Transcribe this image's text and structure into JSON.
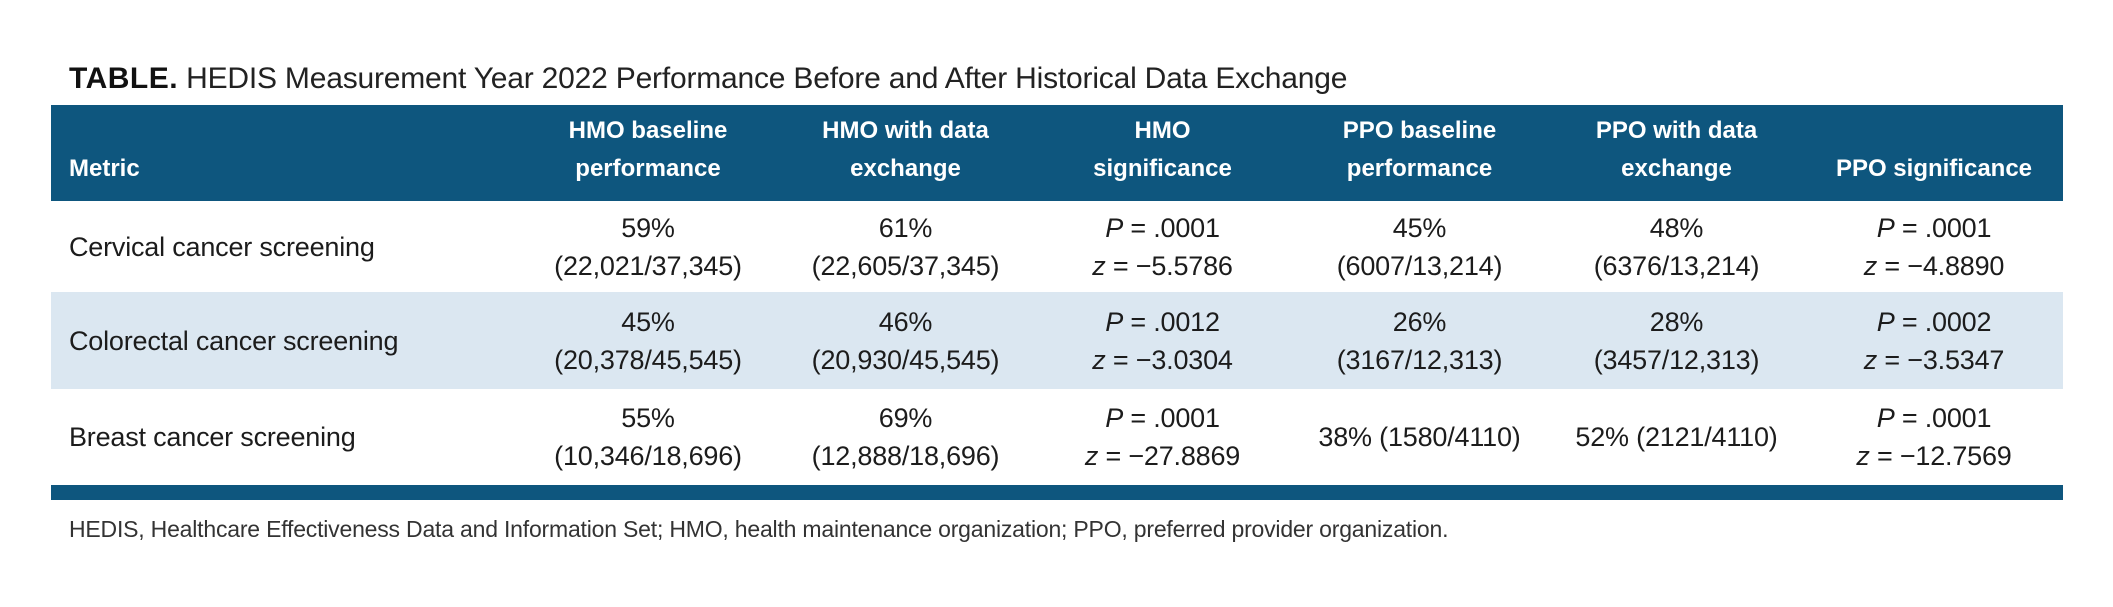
{
  "title": {
    "label": "TABLE.",
    "text": "HEDIS Measurement Year 2022 Performance Before and After Historical Data Exchange"
  },
  "colors": {
    "header_bg": "#0E567E",
    "alt_row_bg": "#DBE7F1",
    "bottom_bar": "#0E567E",
    "header_text": "#FFFFFF",
    "body_text": "#1C1C1C",
    "footnote_text": "#333333"
  },
  "table": {
    "header": [
      {
        "line1": "",
        "line2": "Metric"
      },
      {
        "line1": "HMO baseline",
        "line2": "performance"
      },
      {
        "line1": "HMO with data",
        "line2": "exchange"
      },
      {
        "line1": "HMO",
        "line2": "significance"
      },
      {
        "line1": "PPO baseline",
        "line2": "performance"
      },
      {
        "line1": "PPO with data",
        "line2": "exchange"
      },
      {
        "line1": "",
        "line2": "PPO significance"
      }
    ],
    "rows": [
      {
        "metric": "Cervical cancer screening",
        "hmo_baseline": {
          "l1": "59%",
          "l2": "(22,021/37,345)"
        },
        "hmo_exchange": {
          "l1": "61%",
          "l2": "(22,605/37,345)"
        },
        "hmo_sig": {
          "p_var": "P",
          "p_rest": " = .0001",
          "z_var": "z",
          "z_rest": " = −5.5786"
        },
        "ppo_baseline": {
          "l1": "45%",
          "l2": "(6007/13,214)"
        },
        "ppo_exchange": {
          "l1": "48%",
          "l2": "(6376/13,214)"
        },
        "ppo_sig": {
          "p_var": "P",
          "p_rest": " = .0001",
          "z_var": "z",
          "z_rest": " = −4.8890"
        }
      },
      {
        "metric": "Colorectal cancer screening",
        "hmo_baseline": {
          "l1": "45%",
          "l2": "(20,378/45,545)"
        },
        "hmo_exchange": {
          "l1": "46%",
          "l2": "(20,930/45,545)"
        },
        "hmo_sig": {
          "p_var": "P",
          "p_rest": " = .0012",
          "z_var": "z",
          "z_rest": " = −3.0304"
        },
        "ppo_baseline": {
          "l1": "26%",
          "l2": "(3167/12,313)"
        },
        "ppo_exchange": {
          "l1": "28%",
          "l2": "(3457/12,313)"
        },
        "ppo_sig": {
          "p_var": "P",
          "p_rest": " = .0002",
          "z_var": "z",
          "z_rest": " = −3.5347"
        }
      },
      {
        "metric": "Breast cancer screening",
        "hmo_baseline": {
          "l1": "55%",
          "l2": "(10,346/18,696)"
        },
        "hmo_exchange": {
          "l1": "69%",
          "l2": "(12,888/18,696)"
        },
        "hmo_sig": {
          "p_var": "P",
          "p_rest": " = .0001",
          "z_var": "z",
          "z_rest": " = −27.8869"
        },
        "ppo_baseline": {
          "l1": "38% (1580/4110)",
          "l2": ""
        },
        "ppo_exchange": {
          "l1": "52% (2121/4110)",
          "l2": ""
        },
        "ppo_sig": {
          "p_var": "P",
          "p_rest": " = .0001",
          "z_var": "z",
          "z_rest": " = −12.7569"
        }
      }
    ]
  },
  "footnote": "HEDIS, Healthcare Effectiveness Data and Information Set; HMO, health maintenance organization; PPO, preferred provider organization."
}
